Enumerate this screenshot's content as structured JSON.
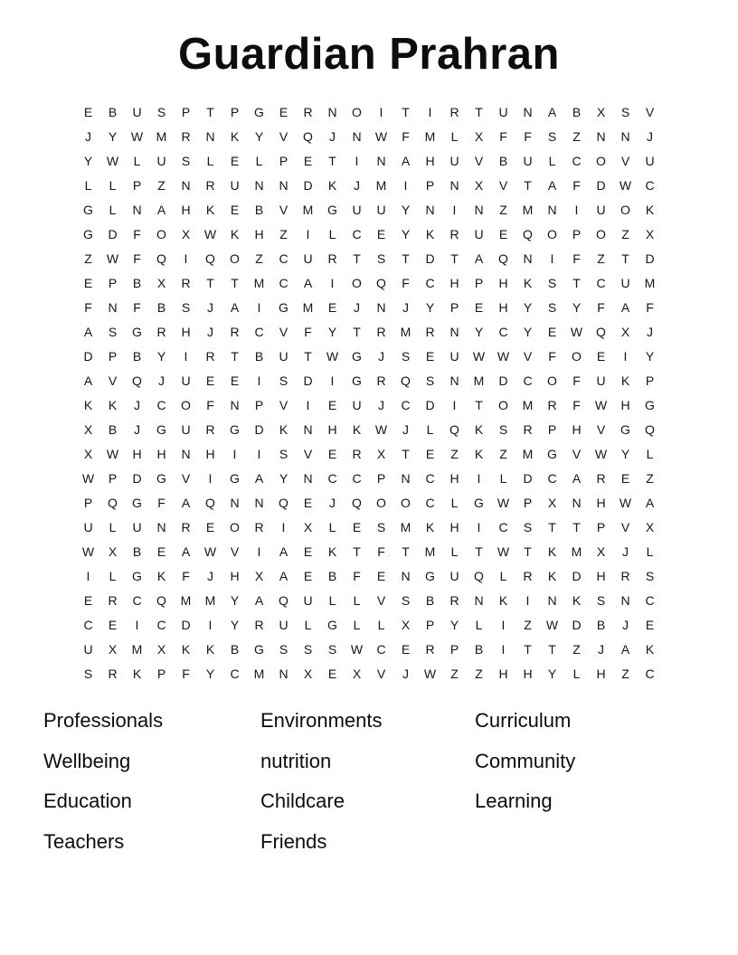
{
  "title": "Guardian Prahran",
  "grid": {
    "rows": [
      "EBUSPTPGERNOITIRTUNABXSV",
      "JYWMRNKYVQJNWFMLXFFSZNNJ",
      "YWLUSLELPETINAHUVBULCOVU",
      "LLPZNRUNNDKJMIPNXVTAFDWC",
      "GLNAHKEBVMGUUYNINZMNIUOK",
      "GDFOXWKHZILCEYKRUEQOPOZX",
      "ZWFQIQOZCURTSTDTAQNIFZTD",
      "EPBXRTTMCAIOQFCHPHKSTCUM",
      "FNFBSJAIGMEJNJYPEHYSYFAF",
      "ASGRHJRCVFYTRMRNYCYEWQXJ",
      "DPBYIRTBUTWGJSEUWWVFOEIY",
      "AVQJUEEISDIGRQSNMDCOFUKP",
      "KKJCOFNPVIEUJCDITOMRFWHG",
      "XBJGURGDKNHKWJLQKSRPHVGQ",
      "XWHHNHIISVERXTEZKZMGVWYL",
      "WPDGVIGAYNCCPNCHILDCAREZ",
      "PQGFAQNNQEJQOOCLGWPXNHWA",
      "ULUNREORIXLESMKHICSTTPVX",
      "WXBEAWVIAEKTFTMLTWTKMXJL",
      "ILGKFJHXAEBFENGUQLRKDHRS",
      "ERCQMMYAQULLVSBRNKINKSNC",
      "CEICDIYRULGLLXPYLIZWDBJE",
      "UXMXKKBGSSSWCERPBITTZJAK",
      "SRKPFYCMNXEXVJWZZHHYLHZC"
    ]
  },
  "word_list": {
    "columns": [
      [
        "Professionals",
        "Wellbeing",
        "Education",
        "Teachers"
      ],
      [
        "Environments",
        "nutrition",
        "Childcare",
        "Friends"
      ],
      [
        "Curriculum",
        "Community",
        "Learning"
      ]
    ]
  },
  "colors": {
    "background": "#ffffff",
    "text": "#0d0d0d"
  }
}
